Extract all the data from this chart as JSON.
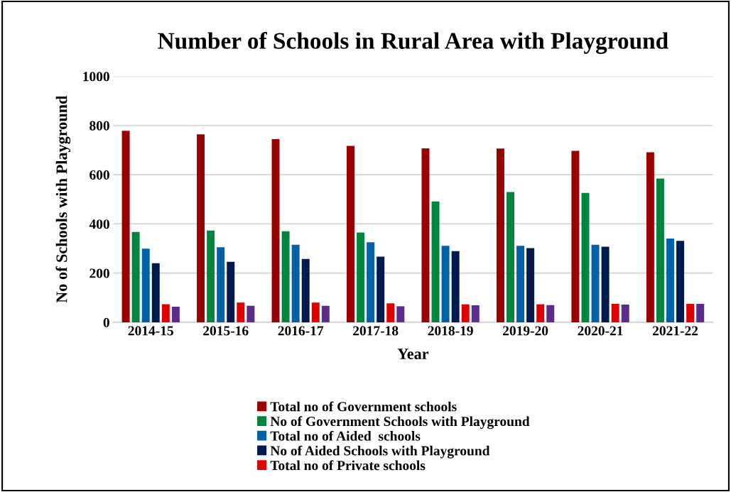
{
  "chart_data": {
    "type": "bar",
    "title": "Number of Schools in Rural Area with Playground",
    "xlabel": "Year",
    "ylabel": "No of Schools with Playground",
    "categories": [
      "2014-15",
      "2015-16",
      "2016-17",
      "2017-18",
      "2018-19",
      "2019-20",
      "2020-21",
      "2021-22"
    ],
    "series": [
      {
        "name": "Total no of Government schools",
        "color": "#990000",
        "values": [
          778,
          764,
          744,
          717,
          707,
          706,
          697,
          691
        ]
      },
      {
        "name": "No of Government Schools with Playground",
        "color": "#00853f",
        "values": [
          367,
          373,
          370,
          365,
          491,
          529,
          526,
          584
        ]
      },
      {
        "name": "Total no of Aided  schools",
        "color": "#0060a8",
        "values": [
          299,
          305,
          315,
          325,
          311,
          311,
          315,
          340
        ]
      },
      {
        "name": "No of Aided Schools with Playground",
        "color": "#001a4d",
        "values": [
          240,
          246,
          257,
          267,
          289,
          301,
          307,
          331
        ]
      },
      {
        "name": "Total no of Private schools",
        "color": "#e00000",
        "values": [
          73,
          80,
          80,
          77,
          73,
          73,
          75,
          75
        ]
      },
      {
        "color": "#5b2c8a",
        "values": [
          63,
          67,
          67,
          65,
          69,
          70,
          72,
          75
        ]
      }
    ],
    "ylim": [
      0,
      1000
    ],
    "yticks": [
      0,
      200,
      400,
      600,
      800,
      1000
    ],
    "grid": "y",
    "legend": "bottom"
  }
}
